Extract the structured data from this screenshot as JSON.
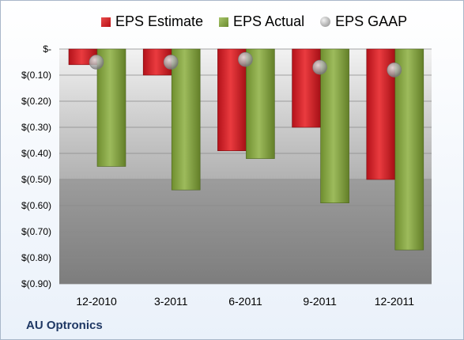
{
  "chart_data": {
    "type": "bar",
    "categories": [
      "12-2010",
      "3-2011",
      "6-2011",
      "9-2011",
      "12-2011"
    ],
    "series": [
      {
        "name": "EPS Estimate",
        "type": "bar",
        "color": "#c0181d",
        "values": [
          -0.06,
          -0.1,
          -0.39,
          -0.3,
          -0.5
        ]
      },
      {
        "name": "EPS Actual",
        "type": "bar",
        "color": "#7e9e3a",
        "values": [
          -0.45,
          -0.54,
          -0.42,
          -0.59,
          -0.77
        ]
      },
      {
        "name": "EPS GAAP",
        "type": "scatter",
        "color": "#a0a0a0",
        "values": [
          -0.05,
          -0.05,
          -0.04,
          -0.07,
          -0.08
        ]
      }
    ],
    "ylim": [
      -0.9,
      0
    ],
    "yticks": [
      0,
      -0.1,
      -0.2,
      -0.3,
      -0.4,
      -0.5,
      -0.6,
      -0.7,
      -0.8,
      -0.9
    ],
    "ytick_labels": [
      "$-",
      "$(0.10)",
      "$(0.20)",
      "$(0.30)",
      "$(0.40)",
      "$(0.50)",
      "$(0.60)",
      "$(0.70)",
      "$(0.80)",
      "$(0.90)"
    ],
    "legend_position": "top",
    "grid": true
  },
  "company_name": "AU Optronics"
}
